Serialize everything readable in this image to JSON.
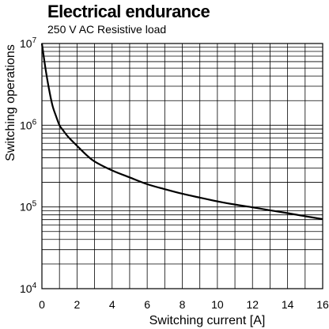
{
  "chart_data": {
    "type": "line",
    "title": "Electrical endurance",
    "subtitle": "250 V AC Resistive load",
    "xlabel": "Switching current [A]",
    "ylabel": "Switching operations",
    "xlim": [
      0,
      16
    ],
    "ylim": [
      10000,
      10000000
    ],
    "y_scale": "log",
    "grid": true,
    "x_ticks": [
      "0",
      "2",
      "4",
      "6",
      "8",
      "10",
      "12",
      "14",
      "16"
    ],
    "y_ticks": [
      {
        "base": "10",
        "exp": "4"
      },
      {
        "base": "10",
        "exp": "5"
      },
      {
        "base": "10",
        "exp": "6"
      },
      {
        "base": "10",
        "exp": "7"
      }
    ],
    "series": [
      {
        "x": [
          0,
          0.2,
          0.4,
          0.6,
          0.8,
          1,
          1.2,
          1.5,
          2,
          2.5,
          3,
          4,
          5,
          6,
          7,
          8,
          9,
          10,
          11,
          12,
          13,
          14,
          15,
          16
        ],
        "y": [
          10000000,
          5000000,
          2800000,
          1750000,
          1300000,
          1000000,
          870000,
          720000,
          560000,
          440000,
          360000,
          280000,
          230000,
          190000,
          165000,
          145000,
          130000,
          117000,
          107000,
          99000,
          91000,
          84000,
          77000,
          71000
        ]
      }
    ]
  }
}
